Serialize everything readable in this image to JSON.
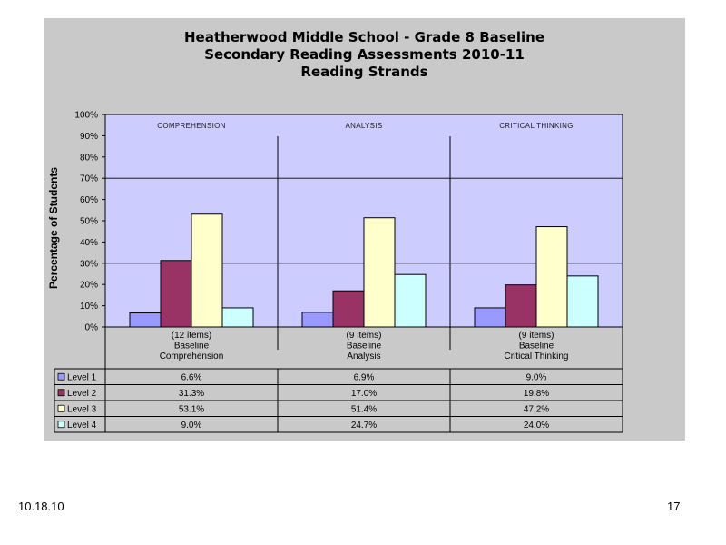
{
  "slide": {
    "date": "10.18.10",
    "page_number": "17"
  },
  "chart_data": {
    "type": "bar",
    "title_lines": [
      "Heatherwood Middle School - Grade 8 Baseline",
      "Secondary Reading Assessments 2010-11",
      "Reading Strands"
    ],
    "ylabel": "Percentage of Students",
    "ylim": [
      0,
      100
    ],
    "yticks": [
      "0%",
      "10%",
      "20%",
      "30%",
      "40%",
      "50%",
      "60%",
      "70%",
      "80%",
      "90%",
      "100%"
    ],
    "groups": [
      "COMPREHENSION",
      "ANALYSIS",
      "CRITICAL THINKING"
    ],
    "categories": [
      [
        "(12 items)",
        "Baseline",
        "Comprehension"
      ],
      [
        "(9 items)",
        "Baseline",
        "Analysis"
      ],
      [
        "(9 items)",
        "Baseline",
        "Critical Thinking"
      ]
    ],
    "series": [
      {
        "name": "Level 1",
        "color": "#9999ff",
        "values": [
          6.6,
          6.9,
          9.0
        ],
        "labels": [
          "6.6%",
          "6.9%",
          "9.0%"
        ]
      },
      {
        "name": "Level 2",
        "color": "#993366",
        "values": [
          31.3,
          17.0,
          19.8
        ],
        "labels": [
          "31.3%",
          "17.0%",
          "19.8%"
        ]
      },
      {
        "name": "Level 3",
        "color": "#ffffcc",
        "values": [
          53.1,
          51.4,
          47.2
        ],
        "labels": [
          "53.1%",
          "51.4%",
          "47.2%"
        ]
      },
      {
        "name": "Level 4",
        "color": "#ccffff",
        "values": [
          9.0,
          24.7,
          24.0
        ],
        "labels": [
          "9.0%",
          "24.7%",
          "24.0%"
        ]
      }
    ],
    "plot_background": "#ccccff",
    "legend": "data-table"
  }
}
